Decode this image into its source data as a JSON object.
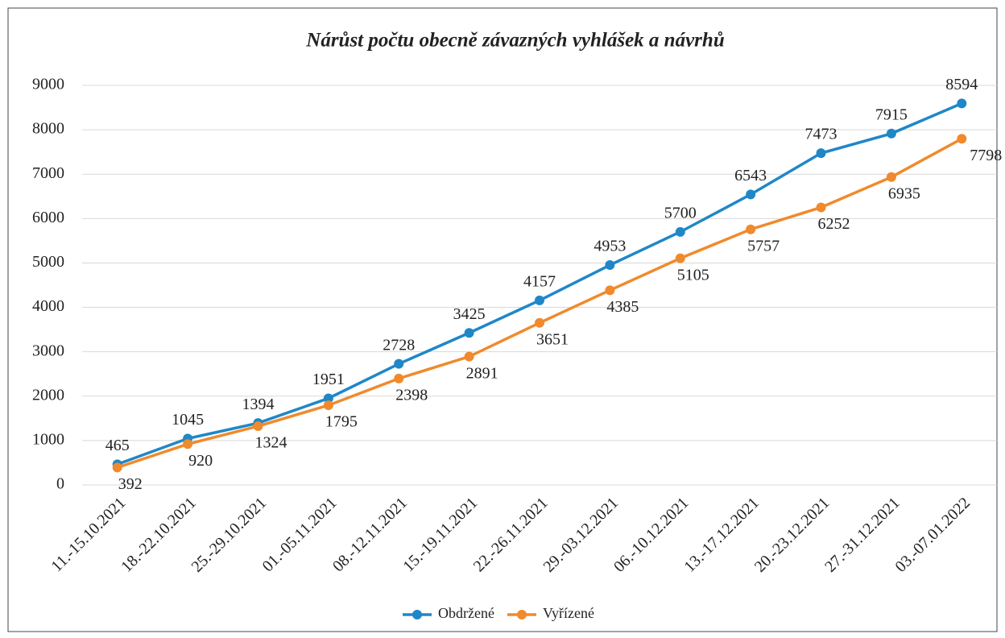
{
  "chart_data": {
    "type": "line",
    "title": "Nárůst počtu obecně závazných vyhlášek a návrhů",
    "categories": [
      "11.-15.10.2021",
      "18.-22.10.2021",
      "25.-29.10.2021",
      "01.-05.11.2021",
      "08.-12.11.2021",
      "15.-19.11.2021",
      "22.-26.11.2021",
      "29.-03.12.2021",
      "06.-10.12.2021",
      "13.-17.12.2021",
      "20.-23.12.2021",
      "27.-31.12.2021",
      "03.-07.01.2022"
    ],
    "series": [
      {
        "name": "Obdržené",
        "color": "#1f87c8",
        "values": [
          465,
          1045,
          1394,
          1951,
          2728,
          3425,
          4157,
          4953,
          5700,
          6543,
          7473,
          7915,
          8594
        ]
      },
      {
        "name": "Vyřízené",
        "color": "#f08a2c",
        "values": [
          392,
          920,
          1324,
          1795,
          2398,
          2891,
          3651,
          4385,
          5105,
          5757,
          6252,
          6935,
          7798
        ]
      }
    ],
    "ylim": [
      0,
      9000
    ],
    "yticks": [
      0,
      1000,
      2000,
      3000,
      4000,
      5000,
      6000,
      7000,
      8000,
      9000
    ],
    "grid": true,
    "legend": "bottom"
  }
}
